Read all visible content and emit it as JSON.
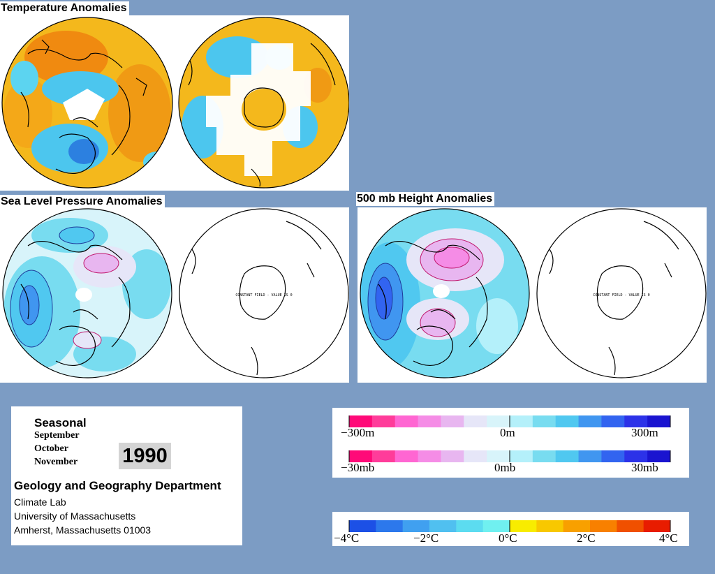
{
  "titles": {
    "temperature": "Temperature Anomalies",
    "slp": "Sea Level Pressure Anomalies",
    "height500": "500 mb Height Anomalies"
  },
  "constant_field_text": "CONSTANT FIELD - VALUE IS 0",
  "info": {
    "season_label": "Seasonal",
    "months": [
      "September",
      "October",
      "November"
    ],
    "year": "1990",
    "department": "Geology and Geography Department",
    "address_lines": [
      "Climate Lab",
      "University of Massachusetts",
      "Amherst, Massachusetts 01003"
    ]
  },
  "scales": {
    "height": {
      "min_label": "−300m",
      "mid_label": "0m",
      "max_label": "300m"
    },
    "pressure": {
      "min_label": "−30mb",
      "mid_label": "0mb",
      "max_label": "30mb"
    },
    "temperature": {
      "labels": [
        "−4°C",
        "−2°C",
        "0°C",
        "2°C",
        "4°C"
      ]
    }
  },
  "colors": {
    "pressure_height_ramp": [
      "#ff0a78",
      "#ff3c9a",
      "#ff66d2",
      "#f58ce6",
      "#e8b6f0",
      "#e6e6f8",
      "#d8f4fa",
      "#b4f0fa",
      "#78dcf0",
      "#50c8f0",
      "#4096f0",
      "#3264f0",
      "#2c32e8",
      "#1a14d0"
    ],
    "temperature_ramp": [
      "#1c50e6",
      "#2c78ec",
      "#40a0f0",
      "#50c0f0",
      "#5cdcf0",
      "#70f0f0",
      "#f8ec00",
      "#f8c800",
      "#f8a000",
      "#f88000",
      "#f05000",
      "#e81c00"
    ],
    "background": "#7c9cc4",
    "cold": "#3ebce8",
    "warm": "#f4b81c"
  }
}
